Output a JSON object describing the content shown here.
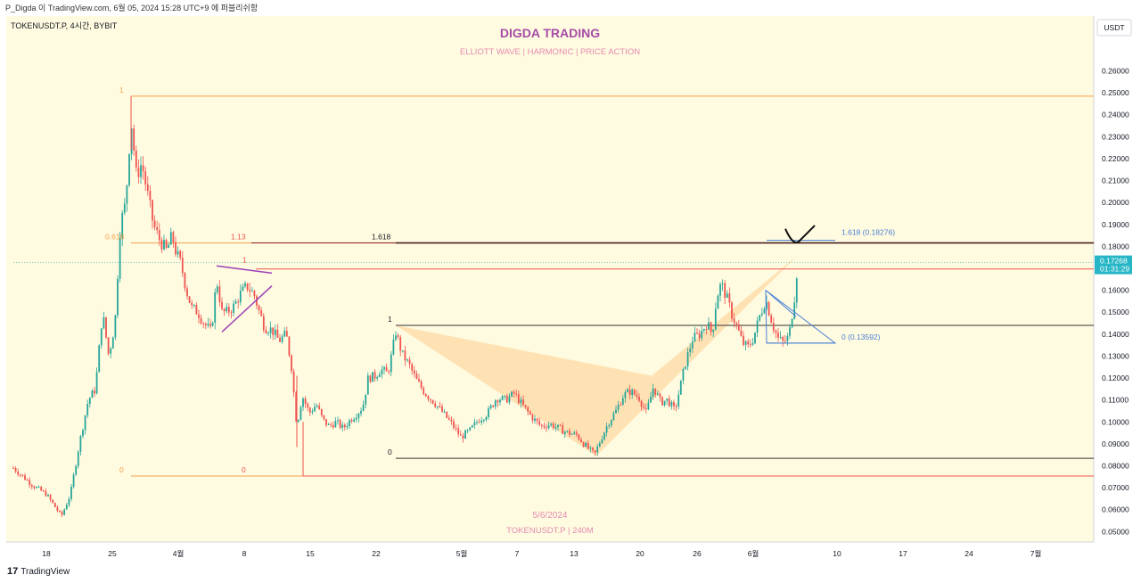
{
  "header": {
    "caption": "P_Digda 이 TradingView.com, 6월 05, 2024 15:28 UTC+9 에 퍼블리쉬함"
  },
  "footer": {
    "brand": "TradingView",
    "logo_mark": "17"
  },
  "colors": {
    "bg": "#fffbe0",
    "up": "#26a69a",
    "down": "#ef5350",
    "pattern_fill": "#ffd7a0",
    "fib_orange": "#f6a04d",
    "dark_red": "#8b1a1a",
    "blue": "#4a7fd6",
    "purple": "#9c3fb7",
    "title": "#a64ca6",
    "pink": "#e58bb1"
  },
  "chart_data": {
    "type": "candlestick",
    "symbol_label": "TOKENUSDT.P, 4시간, BYBIT",
    "currency": "USDT",
    "title": "DIGDA TRADING",
    "subtitle": "ELLIOTT WAVE  |  HARMONIC  |  PRICE ACTION",
    "watermark_date": "5/6/2024",
    "watermark_symbol": "TOKENUSDT.P | 240M",
    "ylim": [
      0.04525,
      0.285
    ],
    "xlim": [
      0,
      1220
    ],
    "y_ticks": [
      "0.26000",
      "0.25000",
      "0.24000",
      "0.23000",
      "0.22000",
      "0.21000",
      "0.20000",
      "0.19000",
      "0.18000",
      "0.17000",
      "0.16000",
      "0.15000",
      "0.14000",
      "0.13000",
      "0.12000",
      "0.11000",
      "0.10000",
      "0.09000",
      "0.08000",
      "0.07000",
      "0.06000",
      "0.05000"
    ],
    "x_ticks": [
      {
        "label": "18",
        "x": 45
      },
      {
        "label": "25",
        "x": 119
      },
      {
        "label": "4월",
        "x": 193
      },
      {
        "label": "8",
        "x": 267
      },
      {
        "label": "15",
        "x": 341
      },
      {
        "label": "22",
        "x": 415
      },
      {
        "label": "5월",
        "x": 511
      },
      {
        "label": "7",
        "x": 573
      },
      {
        "label": "13",
        "x": 637
      },
      {
        "label": "20",
        "x": 711
      },
      {
        "label": "26",
        "x": 775
      },
      {
        "label": "6월",
        "x": 838
      },
      {
        "label": "10",
        "x": 932
      },
      {
        "label": "17",
        "x": 1006
      },
      {
        "label": "24",
        "x": 1080
      },
      {
        "label": "7월",
        "x": 1155
      }
    ],
    "price_path": [
      [
        8,
        0.079
      ],
      [
        30,
        0.071
      ],
      [
        45,
        0.067
      ],
      [
        62,
        0.057
      ],
      [
        72,
        0.067
      ],
      [
        82,
        0.09
      ],
      [
        92,
        0.11
      ],
      [
        100,
        0.115
      ],
      [
        108,
        0.15
      ],
      [
        115,
        0.13
      ],
      [
        122,
        0.145
      ],
      [
        128,
        0.19
      ],
      [
        134,
        0.2
      ],
      [
        140,
        0.238
      ],
      [
        146,
        0.212
      ],
      [
        152,
        0.218
      ],
      [
        158,
        0.205
      ],
      [
        165,
        0.19
      ],
      [
        172,
        0.183
      ],
      [
        180,
        0.178
      ],
      [
        186,
        0.185
      ],
      [
        190,
        0.178
      ],
      [
        196,
        0.172
      ],
      [
        202,
        0.16
      ],
      [
        208,
        0.152
      ],
      [
        215,
        0.15
      ],
      [
        222,
        0.145
      ],
      [
        230,
        0.141
      ],
      [
        236,
        0.165
      ],
      [
        242,
        0.15
      ],
      [
        248,
        0.15
      ],
      [
        256,
        0.153
      ],
      [
        262,
        0.158
      ],
      [
        270,
        0.162
      ],
      [
        278,
        0.158
      ],
      [
        284,
        0.15
      ],
      [
        290,
        0.143
      ],
      [
        298,
        0.142
      ],
      [
        306,
        0.137
      ],
      [
        314,
        0.14
      ],
      [
        320,
        0.125
      ],
      [
        326,
        0.098
      ],
      [
        332,
        0.112
      ],
      [
        340,
        0.104
      ],
      [
        348,
        0.108
      ],
      [
        355,
        0.101
      ],
      [
        362,
        0.098
      ],
      [
        370,
        0.1
      ],
      [
        378,
        0.097
      ],
      [
        386,
        0.101
      ],
      [
        394,
        0.104
      ],
      [
        400,
        0.107
      ],
      [
        406,
        0.12
      ],
      [
        414,
        0.121
      ],
      [
        420,
        0.124
      ],
      [
        428,
        0.122
      ],
      [
        432,
        0.13
      ],
      [
        437,
        0.141
      ],
      [
        444,
        0.131
      ],
      [
        452,
        0.126
      ],
      [
        460,
        0.119
      ],
      [
        470,
        0.113
      ],
      [
        480,
        0.109
      ],
      [
        490,
        0.104
      ],
      [
        500,
        0.099
      ],
      [
        510,
        0.093
      ],
      [
        520,
        0.096
      ],
      [
        530,
        0.101
      ],
      [
        540,
        0.104
      ],
      [
        550,
        0.111
      ],
      [
        560,
        0.11
      ],
      [
        570,
        0.113
      ],
      [
        580,
        0.107
      ],
      [
        590,
        0.102
      ],
      [
        600,
        0.098
      ],
      [
        610,
        0.099
      ],
      [
        620,
        0.097
      ],
      [
        630,
        0.095
      ],
      [
        640,
        0.094
      ],
      [
        650,
        0.089
      ],
      [
        660,
        0.085
      ],
      [
        668,
        0.093
      ],
      [
        676,
        0.1
      ],
      [
        684,
        0.105
      ],
      [
        692,
        0.112
      ],
      [
        700,
        0.114
      ],
      [
        710,
        0.111
      ],
      [
        718,
        0.104
      ],
      [
        726,
        0.116
      ],
      [
        734,
        0.109
      ],
      [
        742,
        0.11
      ],
      [
        750,
        0.105
      ],
      [
        756,
        0.116
      ],
      [
        762,
        0.127
      ],
      [
        770,
        0.138
      ],
      [
        778,
        0.14
      ],
      [
        786,
        0.145
      ],
      [
        792,
        0.14
      ],
      [
        797,
        0.157
      ],
      [
        802,
        0.163
      ],
      [
        808,
        0.157
      ],
      [
        814,
        0.149
      ],
      [
        820,
        0.143
      ],
      [
        826,
        0.136
      ],
      [
        832,
        0.134
      ],
      [
        838,
        0.138
      ],
      [
        845,
        0.148
      ],
      [
        852,
        0.156
      ],
      [
        860,
        0.144
      ],
      [
        866,
        0.138
      ],
      [
        872,
        0.136
      ],
      [
        878,
        0.139
      ],
      [
        884,
        0.156
      ],
      [
        888,
        0.1726
      ]
    ],
    "annotations": {
      "fib_top": {
        "level": "1",
        "price": 0.2485
      },
      "fib_0618": {
        "level": "0.618",
        "price": 0.1816
      },
      "fib_zero": {
        "level": "0",
        "price": 0.0753
      },
      "fib_zero_b": {
        "level": "0",
        "price": 0.0753
      },
      "ext_113": {
        "level": "1.13",
        "price": 0.1816
      },
      "ext_1618": {
        "level": "1.618",
        "price": 0.1816
      },
      "ext_line_1618": {
        "label": "1.618 (0.18276)",
        "price": 0.18276
      },
      "ext_line_0": {
        "label": "0 (0.13592)",
        "price": 0.13592
      },
      "harm_top": {
        "level": "1",
        "price": 0.144
      },
      "harm_bottom": {
        "level": "0",
        "price": 0.0834
      },
      "tri_level": {
        "level": "1",
        "price": 0.1711
      },
      "horiz_red": {
        "price": 0.1697
      },
      "current_price": {
        "value": "0.17268",
        "countdown": "01:31:29"
      }
    }
  }
}
